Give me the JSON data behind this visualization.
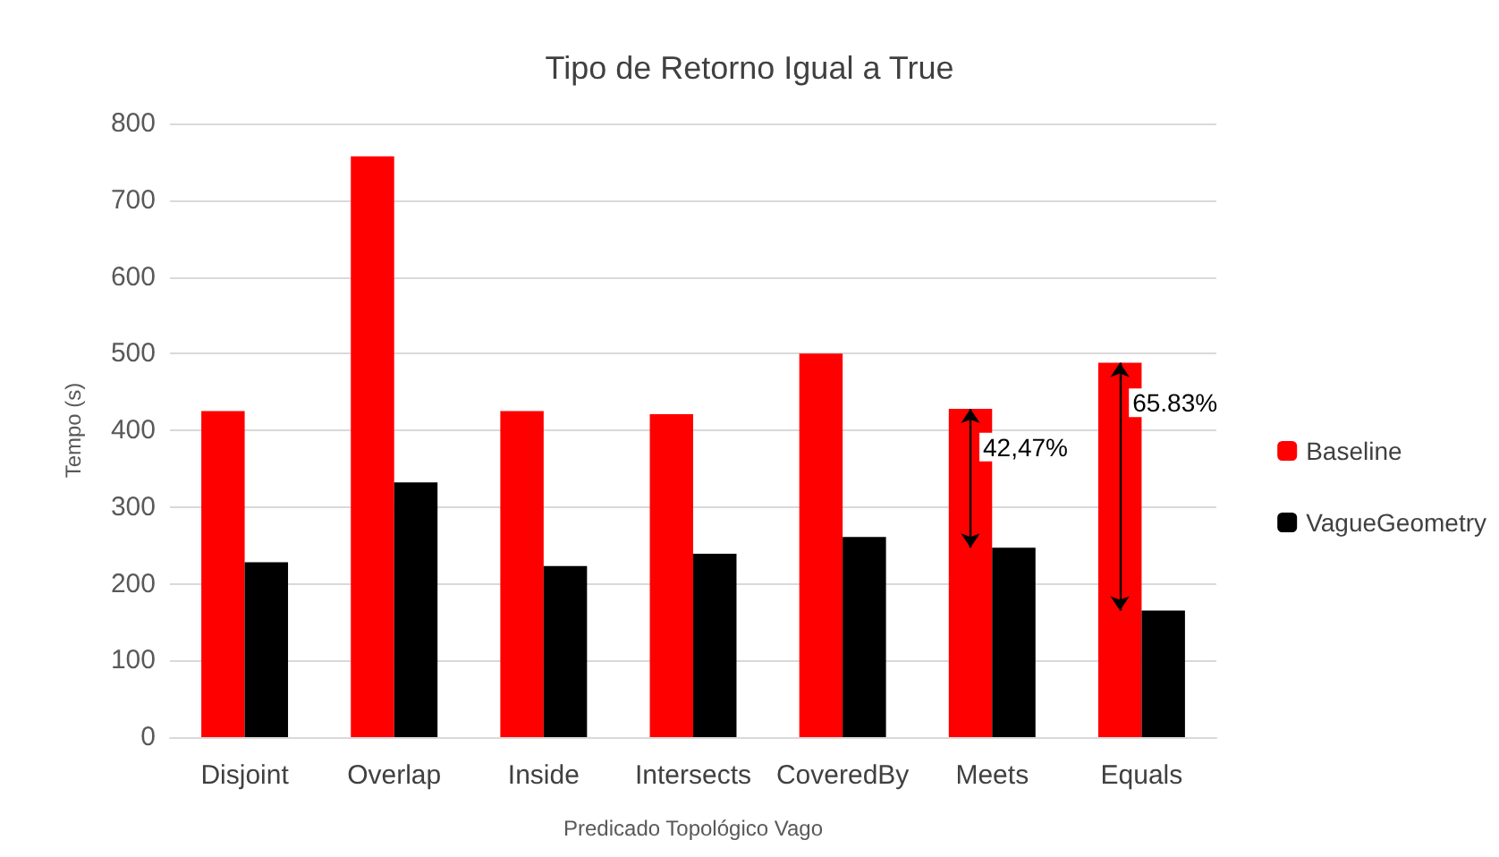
{
  "chart_data": {
    "type": "bar",
    "title": "Tipo de Retorno Igual a True",
    "xlabel": "Predicado Topológico Vago",
    "ylabel": "Tempo (s)",
    "categories": [
      "Disjoint",
      "Overlap",
      "Inside",
      "Intersects",
      "CoveredBy",
      "Meets",
      "Equals"
    ],
    "series": [
      {
        "name": "Baseline",
        "color": "#ff0000",
        "values": [
          425,
          757,
          425,
          421,
          500,
          428,
          488
        ]
      },
      {
        "name": "VagueGeometry",
        "color": "#000000",
        "values": [
          228,
          332,
          223,
          239,
          261,
          247,
          165
        ]
      }
    ],
    "ylim": [
      0,
      800
    ],
    "yticks": [
      0,
      100,
      200,
      300,
      400,
      500,
      600,
      700,
      800
    ],
    "grid": "y",
    "legend": "right",
    "annotations": [
      {
        "text": "42,47%",
        "x": "Meets",
        "y": 378
      },
      {
        "text": "65.83%",
        "x": "Equals",
        "y": 436
      }
    ]
  }
}
